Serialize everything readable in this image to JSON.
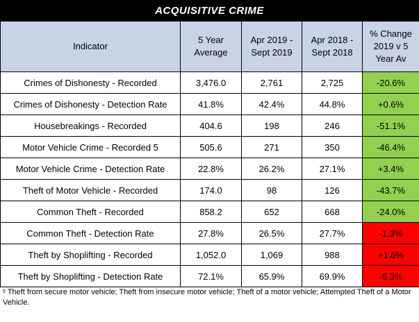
{
  "title": "ACQUISITIVE CRIME",
  "headers": [
    "Indicator",
    "5 Year Average",
    "Apr 2019 - Sept 2019",
    "Apr 2018 - Sept 2018",
    "% Change 2019 v 5 Year Av"
  ],
  "rows": [
    {
      "indicator": "Crimes of Dishonesty - Recorded",
      "avg5": "3,476.0",
      "y2019": "2,761",
      "y2018": "2,725",
      "change": "-20.6%",
      "status": "green"
    },
    {
      "indicator": "Crimes of Dishonesty - Detection Rate",
      "avg5": "41.8%",
      "y2019": "42.4%",
      "y2018": "44.8%",
      "change": "+0.6%",
      "status": "green"
    },
    {
      "indicator": "Housebreakings - Recorded",
      "avg5": "404.6",
      "y2019": "198",
      "y2018": "246",
      "change": "-51.1%",
      "status": "green"
    },
    {
      "indicator": "Motor Vehicle Crime - Recorded 5",
      "avg5": "505.6",
      "y2019": "271",
      "y2018": "350",
      "change": "-46.4%",
      "status": "green"
    },
    {
      "indicator": "Motor Vehicle Crime - Detection Rate",
      "avg5": "22.8%",
      "y2019": "26.2%",
      "y2018": "27.1%",
      "change": "+3.4%",
      "status": "green"
    },
    {
      "indicator": "Theft of Motor Vehicle - Recorded",
      "avg5": "174.0",
      "y2019": "98",
      "y2018": "126",
      "change": "-43.7%",
      "status": "green"
    },
    {
      "indicator": "Common Theft - Recorded",
      "avg5": "858.2",
      "y2019": "652",
      "y2018": "668",
      "change": "-24.0%",
      "status": "green"
    },
    {
      "indicator": "Common Theft - Detection Rate",
      "avg5": "27.8%",
      "y2019": "26.5%",
      "y2018": "27.7%",
      "change": "-1.3%",
      "status": "red"
    },
    {
      "indicator": "Theft by Shoplifting - Recorded",
      "avg5": "1,052.0",
      "y2019": "1,069",
      "y2018": "988",
      "change": "+1.6%",
      "status": "red"
    },
    {
      "indicator": "Theft by Shoplifting - Detection Rate",
      "avg5": "72.1%",
      "y2019": "65.9%",
      "y2018": "69.9%",
      "change": "-6.3%",
      "status": "red"
    }
  ],
  "footnote": {
    "marker": "5",
    "text": "Theft from secure motor vehicle; Theft from insecure motor vehicle; Theft of a motor vehicle; Attempted Theft of a Motor Vehicle."
  },
  "colors": {
    "header_bg": "#c9d3e6",
    "green": "#92d050",
    "red": "#ff0000",
    "title_bg": "#000000"
  }
}
